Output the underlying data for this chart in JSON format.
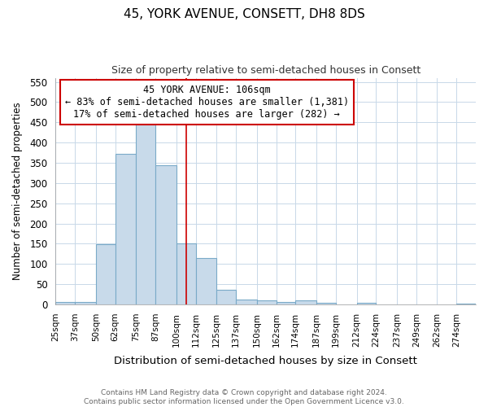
{
  "title": "45, YORK AVENUE, CONSETT, DH8 8DS",
  "subtitle": "Size of property relative to semi-detached houses in Consett",
  "xlabel": "Distribution of semi-detached houses by size in Consett",
  "ylabel": "Number of semi-detached properties",
  "categories": [
    "25sqm",
    "37sqm",
    "50sqm",
    "62sqm",
    "75sqm",
    "87sqm",
    "100sqm",
    "112sqm",
    "125sqm",
    "137sqm",
    "150sqm",
    "162sqm",
    "174sqm",
    "187sqm",
    "199sqm",
    "212sqm",
    "224sqm",
    "237sqm",
    "249sqm",
    "262sqm",
    "274sqm"
  ],
  "label_vals": [
    25,
    37,
    50,
    62,
    75,
    87,
    100,
    112,
    125,
    137,
    150,
    162,
    174,
    187,
    199,
    212,
    224,
    237,
    249,
    262,
    274
  ],
  "values": [
    7,
    7,
    148,
    372,
    449,
    344,
    150,
    115,
    36,
    13,
    11,
    7,
    10,
    4,
    0,
    4,
    0,
    0,
    0,
    0,
    3
  ],
  "bar_color": "#c8daea",
  "bar_edge_color": "#7aaac8",
  "bar_linewidth": 0.8,
  "property_line_x": 106,
  "property_line_color": "#cc0000",
  "annotation_title": "45 YORK AVENUE: 106sqm",
  "annotation_line1": "← 83% of semi-detached houses are smaller (1,381)",
  "annotation_line2": "17% of semi-detached houses are larger (282) →",
  "annotation_box_color": "#ffffff",
  "annotation_box_edge": "#cc0000",
  "ylim": [
    0,
    560
  ],
  "yticks": [
    0,
    50,
    100,
    150,
    200,
    250,
    300,
    350,
    400,
    450,
    500,
    550
  ],
  "footer": "Contains HM Land Registry data © Crown copyright and database right 2024.\nContains public sector information licensed under the Open Government Licence v3.0.",
  "grid_color": "#c8d8e8",
  "plot_bg_color": "#ffffff",
  "fig_bg_color": "#ffffff"
}
